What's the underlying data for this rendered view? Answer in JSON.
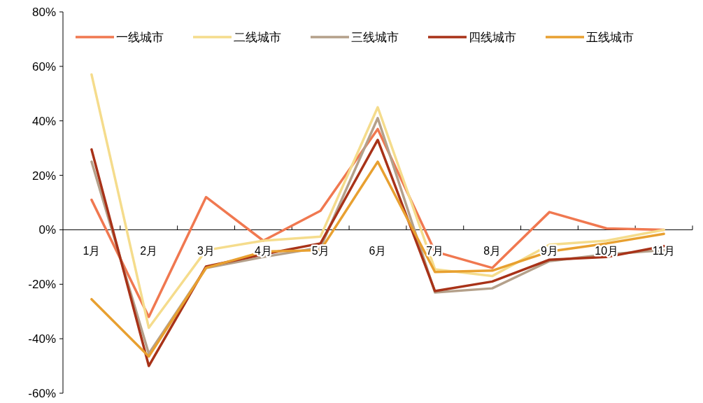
{
  "chart_data": {
    "type": "line",
    "categories": [
      "1月",
      "2月",
      "3月",
      "4月",
      "5月",
      "6月",
      "7月",
      "8月",
      "9月",
      "10月",
      "11月"
    ],
    "series": [
      {
        "name": "一线城市",
        "color": "#f07850",
        "values": [
          11,
          -32,
          12,
          -4,
          7,
          37,
          -8,
          -14,
          6.5,
          0.5,
          0
        ]
      },
      {
        "name": "二线城市",
        "color": "#f5dc8c",
        "values": [
          57,
          -36,
          -7.5,
          -4,
          -2.5,
          45,
          -14.5,
          -17,
          -5.5,
          -4,
          0
        ]
      },
      {
        "name": "三线城市",
        "color": "#b4a08a",
        "values": [
          25,
          -45.5,
          -14,
          -10,
          -6.5,
          41,
          -23,
          -21.5,
          -11.5,
          -9,
          -7.5
        ]
      },
      {
        "name": "四线城市",
        "color": "#a83218",
        "values": [
          29.5,
          -50,
          -13.5,
          -9,
          -5,
          33,
          -22.5,
          -19,
          -11,
          -10,
          -6
        ]
      },
      {
        "name": "五线城市",
        "color": "#e8a030",
        "values": [
          -25.5,
          -46.5,
          -14,
          -8,
          -7.5,
          25,
          -15.5,
          -15,
          -8,
          -5,
          -1.5
        ]
      }
    ],
    "ylim": [
      -60,
      80
    ],
    "yticks": [
      {
        "value": -60,
        "label": "-60%"
      },
      {
        "value": -40,
        "label": "-40%"
      },
      {
        "value": -20,
        "label": "-20%"
      },
      {
        "value": 0,
        "label": "0%"
      },
      {
        "value": 20,
        "label": "20%"
      },
      {
        "value": 40,
        "label": "40%"
      },
      {
        "value": 60,
        "label": "60%"
      },
      {
        "value": 80,
        "label": "80%"
      }
    ],
    "legend": "top",
    "grid": false
  }
}
